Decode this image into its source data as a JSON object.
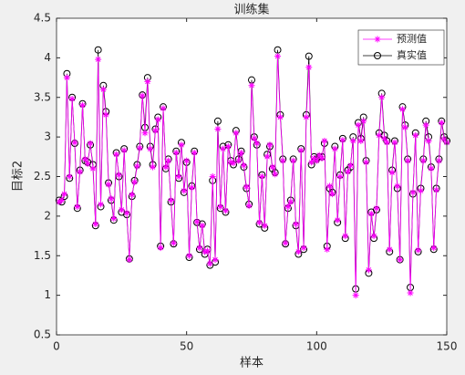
{
  "chart_data": {
    "type": "line",
    "title": "训练集",
    "xlabel": "样本",
    "ylabel": "目标2",
    "xlim": [
      0,
      150
    ],
    "xticks": [
      0,
      50,
      100,
      150
    ],
    "ylim": [
      0.5,
      4.5
    ],
    "yticks": [
      0.5,
      1,
      1.5,
      2,
      2.5,
      3,
      3.5,
      4,
      4.5
    ],
    "legend": "northeast",
    "x": [
      1,
      2,
      3,
      4,
      5,
      6,
      7,
      8,
      9,
      10,
      11,
      12,
      13,
      14,
      15,
      16,
      17,
      18,
      19,
      20,
      21,
      22,
      23,
      24,
      25,
      26,
      27,
      28,
      29,
      30,
      31,
      32,
      33,
      34,
      35,
      36,
      37,
      38,
      39,
      40,
      41,
      42,
      43,
      44,
      45,
      46,
      47,
      48,
      49,
      50,
      51,
      52,
      53,
      54,
      55,
      56,
      57,
      58,
      59,
      60,
      61,
      62,
      63,
      64,
      65,
      66,
      67,
      68,
      69,
      70,
      71,
      72,
      73,
      74,
      75,
      76,
      77,
      78,
      79,
      80,
      81,
      82,
      83,
      84,
      85,
      86,
      87,
      88,
      89,
      90,
      91,
      92,
      93,
      94,
      95,
      96,
      97,
      98,
      99,
      100,
      101,
      102,
      103,
      104,
      105,
      106,
      107,
      108,
      109,
      110,
      111,
      112,
      113,
      114,
      115,
      116,
      117,
      118,
      119,
      120,
      121,
      122,
      123,
      124,
      125,
      126,
      127,
      128,
      129,
      130,
      131,
      132,
      133,
      134,
      135,
      136,
      137,
      138,
      139,
      140,
      141,
      142,
      143,
      144,
      145,
      146,
      147,
      148,
      149,
      150
    ],
    "series": [
      {
        "name": "预测值",
        "color": "#ff00ff",
        "marker": "star",
        "values": [
          2.18,
          2.2,
          2.28,
          3.75,
          2.5,
          3.48,
          2.93,
          2.12,
          2.56,
          3.4,
          2.72,
          2.66,
          2.92,
          2.6,
          1.9,
          3.98,
          2.15,
          3.6,
          3.28,
          2.4,
          2.22,
          1.97,
          2.78,
          2.52,
          2.08,
          2.83,
          2.04,
          1.45,
          2.27,
          2.43,
          2.63,
          2.86,
          3.52,
          3.05,
          3.7,
          2.85,
          2.62,
          3.08,
          3.22,
          1.6,
          3.36,
          2.62,
          2.7,
          2.2,
          1.66,
          2.8,
          2.5,
          2.9,
          2.32,
          2.7,
          1.5,
          2.36,
          2.8,
          1.93,
          1.6,
          1.88,
          1.55,
          1.56,
          1.4,
          2.5,
          1.45,
          3.1,
          2.12,
          2.85,
          2.07,
          2.88,
          2.68,
          2.67,
          3.05,
          2.7,
          2.8,
          2.64,
          2.37,
          2.13,
          3.65,
          2.98,
          2.92,
          1.92,
          2.5,
          1.88,
          2.75,
          2.9,
          2.62,
          2.53,
          4.02,
          3.25,
          2.7,
          1.66,
          2.12,
          2.18,
          2.7,
          1.9,
          1.55,
          2.83,
          1.6,
          3.25,
          3.88,
          2.68,
          2.73,
          2.7,
          2.77,
          2.73,
          2.95,
          1.58,
          2.38,
          2.28,
          2.85,
          1.95,
          2.5,
          2.96,
          1.75,
          2.56,
          2.64,
          2.95,
          1.0,
          3.15,
          2.95,
          3.2,
          2.68,
          1.32,
          2.03,
          1.75,
          2.1,
          3.02,
          3.5,
          2.98,
          2.93,
          1.58,
          2.55,
          2.93,
          2.38,
          1.45,
          3.35,
          3.12,
          2.7,
          1.03,
          2.3,
          3.02,
          1.57,
          2.32,
          2.7,
          3.15,
          2.95,
          2.6,
          1.6,
          2.33,
          2.7,
          3.18,
          2.97,
          2.93
        ]
      },
      {
        "name": "真实值",
        "color": "#000000",
        "marker": "circle",
        "values": [
          2.2,
          2.18,
          2.25,
          3.8,
          2.48,
          3.5,
          2.92,
          2.1,
          2.58,
          3.42,
          2.7,
          2.68,
          2.9,
          2.65,
          1.88,
          4.1,
          2.12,
          3.65,
          3.32,
          2.42,
          2.2,
          1.95,
          2.8,
          2.5,
          2.05,
          2.85,
          2.02,
          1.46,
          2.25,
          2.45,
          2.65,
          2.88,
          3.53,
          3.12,
          3.75,
          2.88,
          2.65,
          3.1,
          3.25,
          1.62,
          3.38,
          2.6,
          2.72,
          2.18,
          1.65,
          2.82,
          2.48,
          2.93,
          2.3,
          2.68,
          1.48,
          2.38,
          2.82,
          1.92,
          1.58,
          1.9,
          1.52,
          1.58,
          1.38,
          2.45,
          1.42,
          3.2,
          2.1,
          2.88,
          2.05,
          2.9,
          2.7,
          2.65,
          3.08,
          2.72,
          2.82,
          2.62,
          2.35,
          2.15,
          3.72,
          3.0,
          2.9,
          1.9,
          2.52,
          1.85,
          2.78,
          2.88,
          2.6,
          2.55,
          4.1,
          3.28,
          2.72,
          1.65,
          2.1,
          2.2,
          2.72,
          1.88,
          1.52,
          2.85,
          1.58,
          3.28,
          4.02,
          2.65,
          2.75,
          2.72,
          2.75,
          2.75,
          2.92,
          1.62,
          2.35,
          2.3,
          2.88,
          1.92,
          2.52,
          2.98,
          1.72,
          2.58,
          2.62,
          3.0,
          1.08,
          3.18,
          2.98,
          3.25,
          2.7,
          1.28,
          2.05,
          1.72,
          2.08,
          3.05,
          3.55,
          3.02,
          2.95,
          1.55,
          2.58,
          2.95,
          2.35,
          1.45,
          3.38,
          3.15,
          2.72,
          1.1,
          2.28,
          3.05,
          1.55,
          2.35,
          2.72,
          3.2,
          3.0,
          2.62,
          1.58,
          2.35,
          2.72,
          3.2,
          3.0,
          2.95
        ]
      }
    ]
  }
}
